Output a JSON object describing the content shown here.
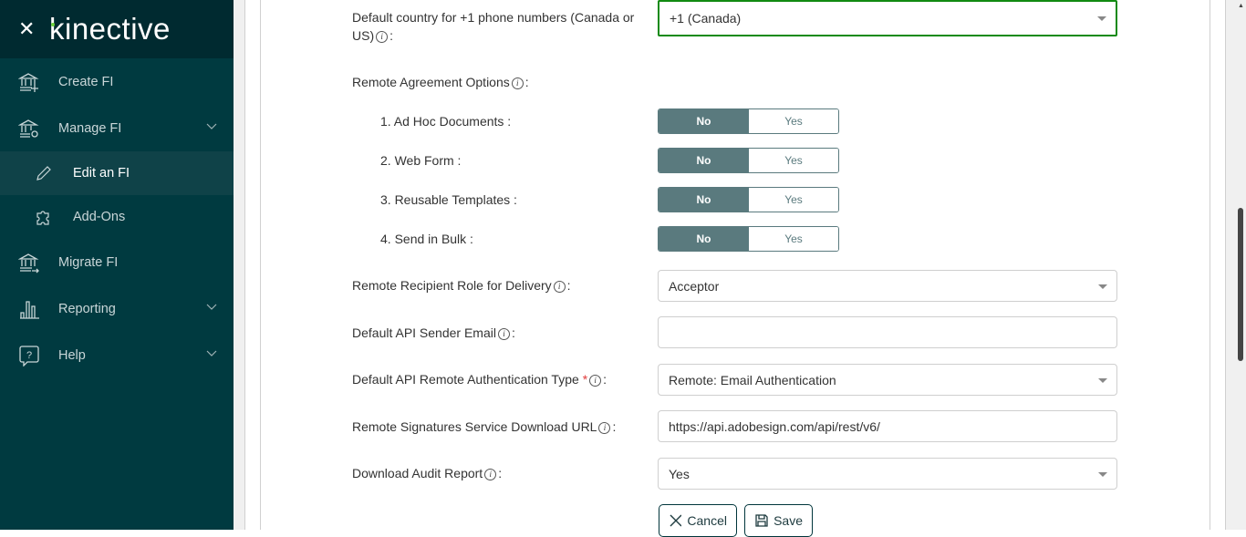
{
  "brand": {
    "close_icon": "close-icon",
    "logo": "kinective"
  },
  "sidebar": {
    "items": [
      {
        "label": "Create FI",
        "icon": "bank-plus-icon"
      },
      {
        "label": "Manage FI",
        "icon": "bank-gear-icon",
        "expandable": true
      },
      {
        "label": "Edit an FI",
        "icon": "pencil-icon",
        "active": true
      },
      {
        "label": "Add-Ons",
        "icon": "puzzle-icon"
      },
      {
        "label": "Migrate FI",
        "icon": "bank-arrow-icon"
      },
      {
        "label": "Reporting",
        "icon": "bar-chart-icon",
        "expandable": true
      },
      {
        "label": "Help",
        "icon": "help-bubble-icon",
        "expandable": true
      }
    ]
  },
  "form": {
    "country": {
      "label_line1": "Default country for +1 phone numbers (Canada or",
      "label_line2": "US)",
      "value": "+1 (Canada)"
    },
    "remote_options": {
      "label": "Remote Agreement Options",
      "items": [
        {
          "label": "1. Ad Hoc Documents :",
          "no": "No",
          "yes": "Yes",
          "value": "No"
        },
        {
          "label": "2. Web Form :",
          "no": "No",
          "yes": "Yes",
          "value": "No"
        },
        {
          "label": "3. Reusable Templates :",
          "no": "No",
          "yes": "Yes",
          "value": "No"
        },
        {
          "label": "4. Send in Bulk :",
          "no": "No",
          "yes": "Yes",
          "value": "No"
        }
      ]
    },
    "recipient_role": {
      "label": "Remote Recipient Role for Delivery",
      "value": "Acceptor"
    },
    "sender_email": {
      "label": "Default API Sender Email",
      "value": ""
    },
    "auth_type": {
      "label": "Default API Remote Authentication Type",
      "required": "*",
      "value": "Remote: Email Authentication"
    },
    "download_url": {
      "label": "Remote Signatures Service Download URL",
      "value": "https://api.adobesign.com/api/rest/v6/"
    },
    "audit_report": {
      "label": "Download Audit Report",
      "value": "Yes"
    },
    "colon": ":",
    "info": "i"
  },
  "actions": {
    "cancel": "Cancel",
    "save": "Save"
  },
  "colors": {
    "sidebar": "#003a40",
    "brand_bar": "#002a30",
    "toggle_active": "#5a7a7e",
    "focus_border": "#118a11"
  }
}
